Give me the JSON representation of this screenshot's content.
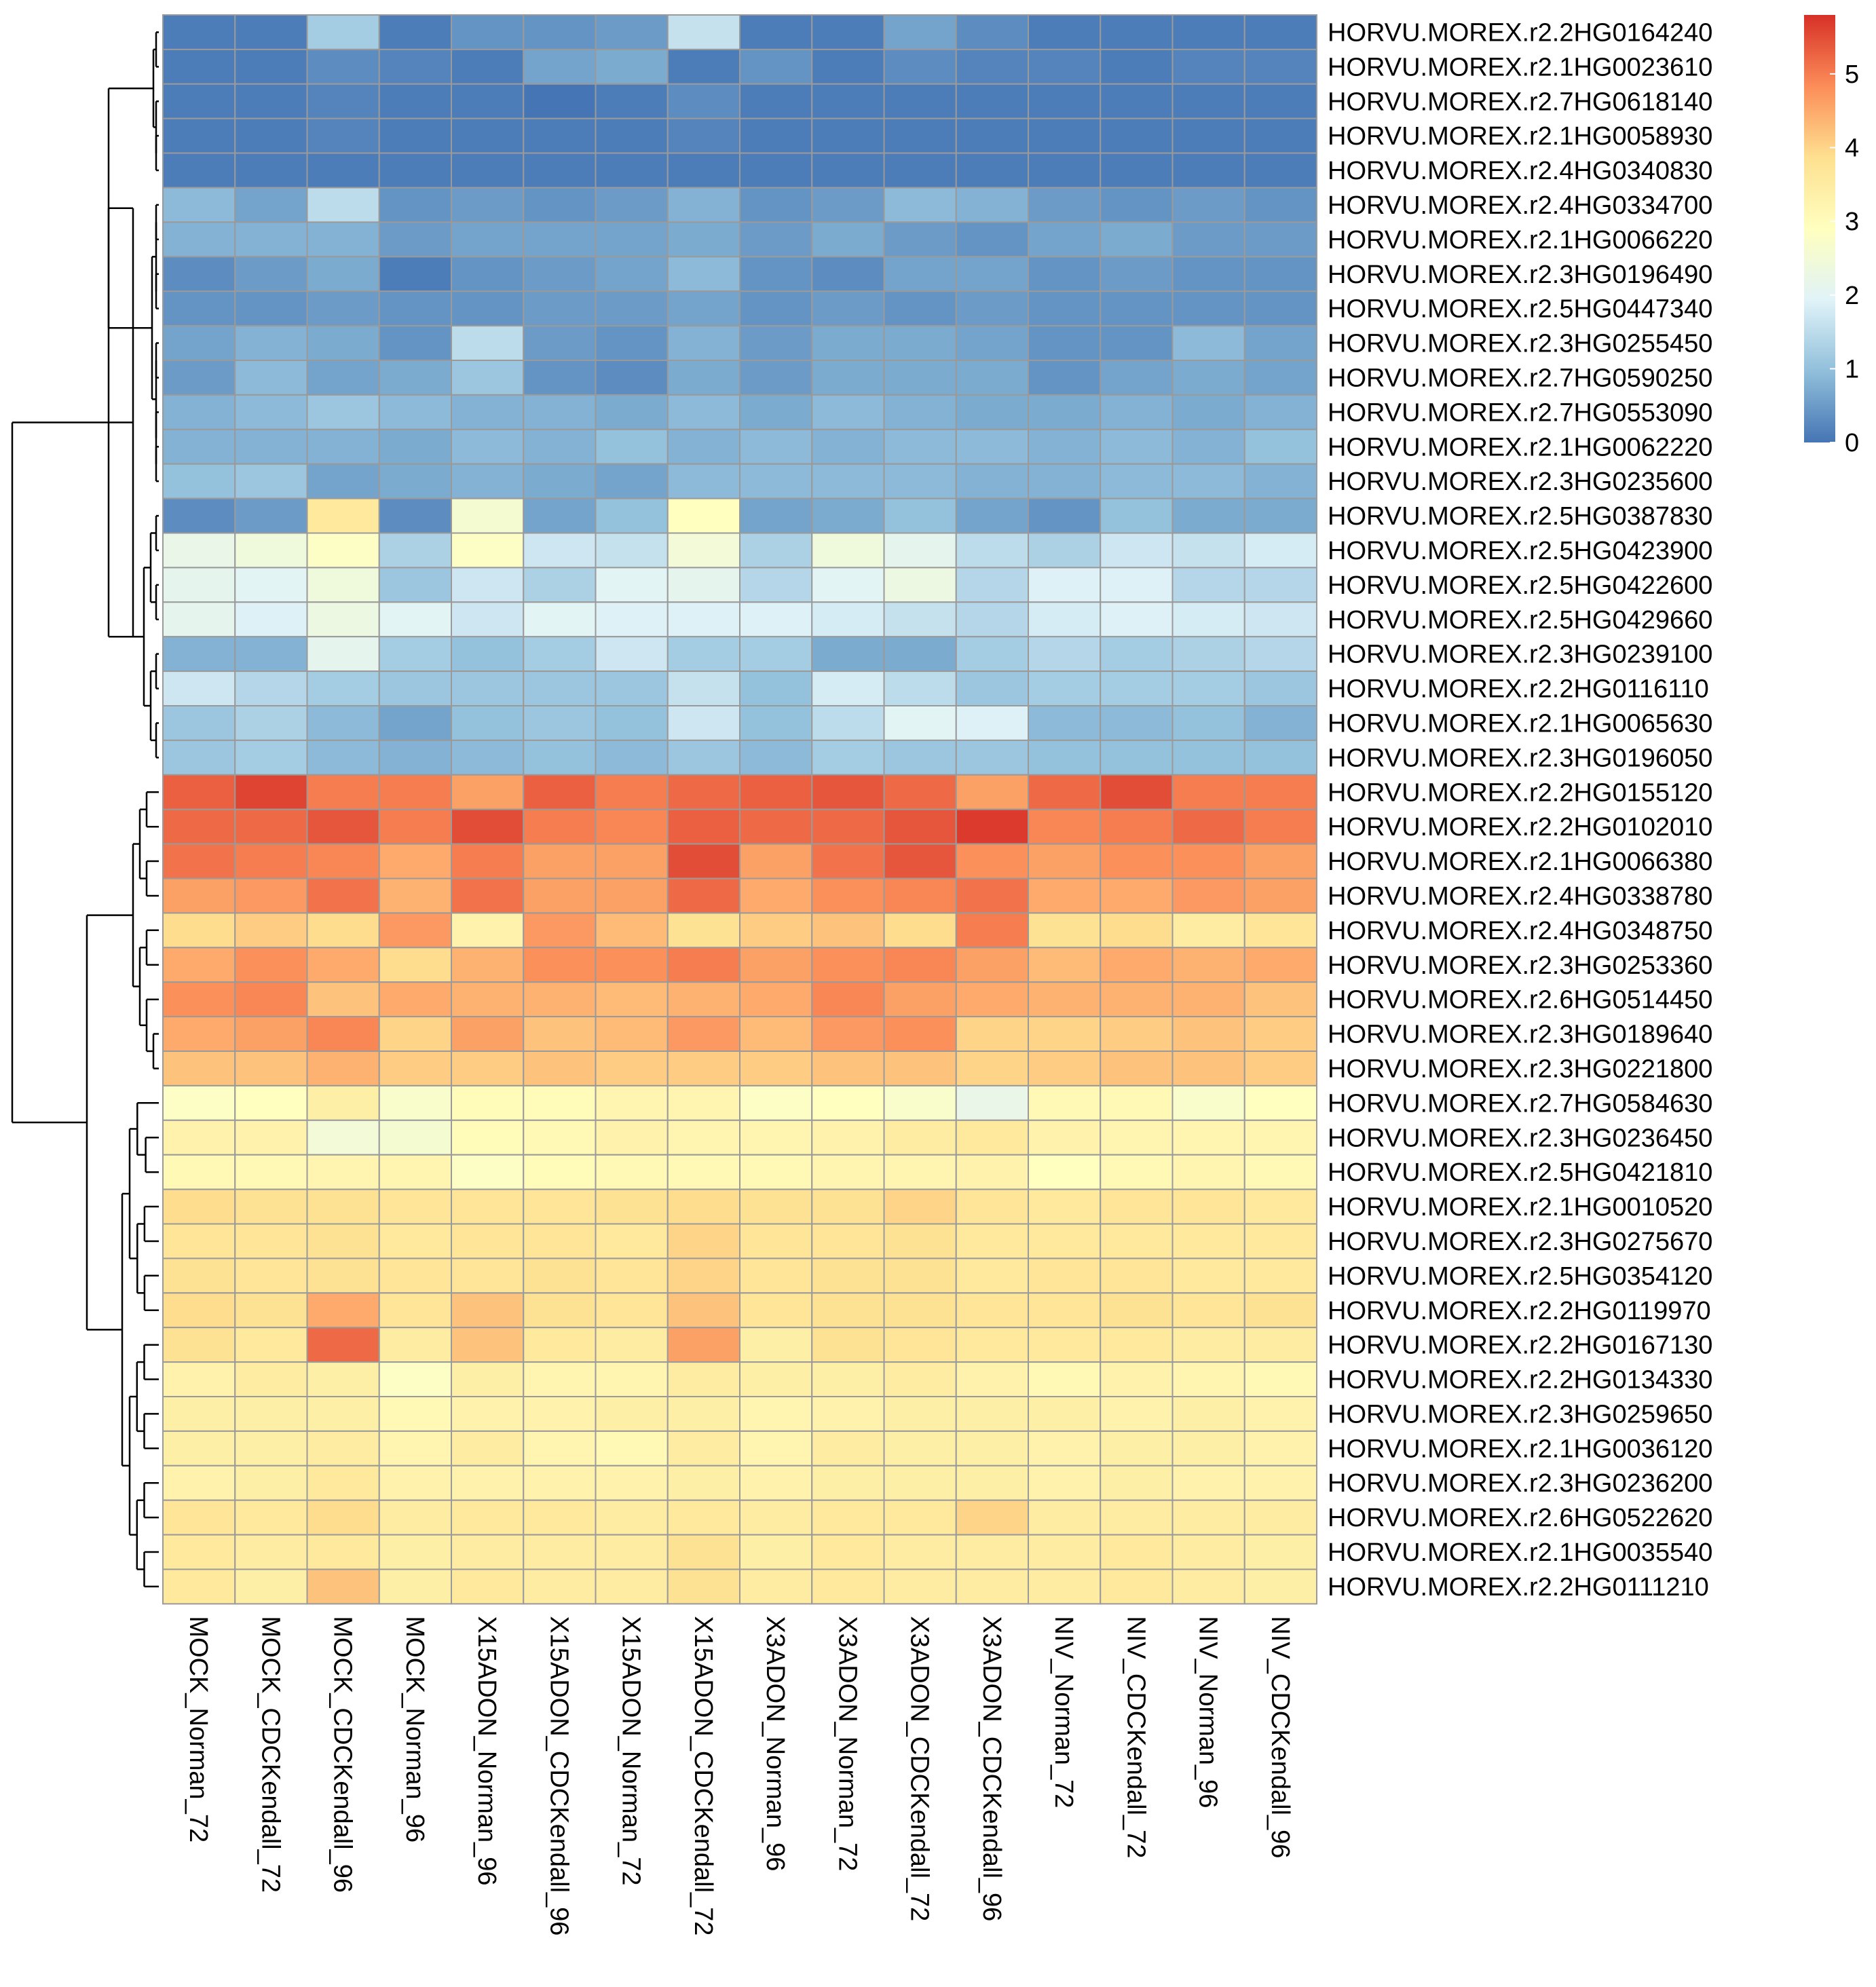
{
  "chart_data": {
    "type": "heatmap",
    "title": "",
    "xlabel": "",
    "ylabel": "",
    "columns": [
      "MOCK_Norman_72",
      "MOCK_CDCKendall_72",
      "MOCK_CDCKendall_96",
      "MOCK_Norman_96",
      "X15ADON_Norman_96",
      "X15ADON_CDCKendall_96",
      "X15ADON_Norman_72",
      "X15ADON_CDCKendall_72",
      "X3ADON_Norman_96",
      "X3ADON_Norman_72",
      "X3ADON_CDCKendall_72",
      "X3ADON_CDCKendall_96",
      "NIV_Norman_72",
      "NIV_CDCKendall_72",
      "NIV_Norman_96",
      "NIV_CDCKendall_96"
    ],
    "rows": [
      "HORVU.MOREX.r2.2HG0164240",
      "HORVU.MOREX.r2.1HG0023610",
      "HORVU.MOREX.r2.7HG0618140",
      "HORVU.MOREX.r2.1HG0058930",
      "HORVU.MOREX.r2.4HG0340830",
      "HORVU.MOREX.r2.4HG0334700",
      "HORVU.MOREX.r2.1HG0066220",
      "HORVU.MOREX.r2.3HG0196490",
      "HORVU.MOREX.r2.5HG0447340",
      "HORVU.MOREX.r2.3HG0255450",
      "HORVU.MOREX.r2.7HG0590250",
      "HORVU.MOREX.r2.7HG0553090",
      "HORVU.MOREX.r2.1HG0062220",
      "HORVU.MOREX.r2.3HG0235600",
      "HORVU.MOREX.r2.5HG0387830",
      "HORVU.MOREX.r2.5HG0423900",
      "HORVU.MOREX.r2.5HG0422600",
      "HORVU.MOREX.r2.5HG0429660",
      "HORVU.MOREX.r2.3HG0239100",
      "HORVU.MOREX.r2.2HG0116110",
      "HORVU.MOREX.r2.1HG0065630",
      "HORVU.MOREX.r2.3HG0196050",
      "HORVU.MOREX.r2.2HG0155120",
      "HORVU.MOREX.r2.2HG0102010",
      "HORVU.MOREX.r2.1HG0066380",
      "HORVU.MOREX.r2.4HG0338780",
      "HORVU.MOREX.r2.4HG0348750",
      "HORVU.MOREX.r2.3HG0253360",
      "HORVU.MOREX.r2.6HG0514450",
      "HORVU.MOREX.r2.3HG0189640",
      "HORVU.MOREX.r2.3HG0221800",
      "HORVU.MOREX.r2.7HG0584630",
      "HORVU.MOREX.r2.3HG0236450",
      "HORVU.MOREX.r2.5HG0421810",
      "HORVU.MOREX.r2.1HG0010520",
      "HORVU.MOREX.r2.3HG0275670",
      "HORVU.MOREX.r2.5HG0354120",
      "HORVU.MOREX.r2.2HG0119970",
      "HORVU.MOREX.r2.2HG0167130",
      "HORVU.MOREX.r2.2HG0134330",
      "HORVU.MOREX.r2.3HG0259650",
      "HORVU.MOREX.r2.1HG0036120",
      "HORVU.MOREX.r2.3HG0236200",
      "HORVU.MOREX.r2.6HG0522620",
      "HORVU.MOREX.r2.1HG0035540",
      "HORVU.MOREX.r2.2HG0111210"
    ],
    "values": [
      [
        0.1,
        0.1,
        1.2,
        0.1,
        0.4,
        0.4,
        0.5,
        1.6,
        0.1,
        0.1,
        0.6,
        0.3,
        0.1,
        0.1,
        0.1,
        0.1
      ],
      [
        0.1,
        0.1,
        0.3,
        0.2,
        0.1,
        0.6,
        0.7,
        0.1,
        0.4,
        0.1,
        0.3,
        0.2,
        0.2,
        0.1,
        0.2,
        0.2
      ],
      [
        0.1,
        0.1,
        0.2,
        0.1,
        0.1,
        0.0,
        0.1,
        0.3,
        0.1,
        0.1,
        0.1,
        0.1,
        0.1,
        0.1,
        0.1,
        0.1
      ],
      [
        0.1,
        0.1,
        0.2,
        0.1,
        0.1,
        0.1,
        0.1,
        0.2,
        0.1,
        0.1,
        0.1,
        0.1,
        0.1,
        0.1,
        0.1,
        0.1
      ],
      [
        0.1,
        0.1,
        0.1,
        0.1,
        0.1,
        0.1,
        0.1,
        0.1,
        0.1,
        0.1,
        0.1,
        0.1,
        0.1,
        0.1,
        0.1,
        0.1
      ],
      [
        0.9,
        0.6,
        1.5,
        0.4,
        0.5,
        0.4,
        0.5,
        0.8,
        0.4,
        0.5,
        0.9,
        0.8,
        0.5,
        0.4,
        0.5,
        0.4
      ],
      [
        0.8,
        0.8,
        0.8,
        0.5,
        0.6,
        0.6,
        0.6,
        0.7,
        0.5,
        0.7,
        0.5,
        0.4,
        0.6,
        0.7,
        0.5,
        0.5
      ],
      [
        0.3,
        0.5,
        0.7,
        0.1,
        0.4,
        0.5,
        0.6,
        0.9,
        0.4,
        0.3,
        0.6,
        0.6,
        0.4,
        0.5,
        0.4,
        0.4
      ],
      [
        0.4,
        0.4,
        0.5,
        0.4,
        0.4,
        0.5,
        0.5,
        0.6,
        0.4,
        0.5,
        0.4,
        0.5,
        0.4,
        0.4,
        0.4,
        0.4
      ],
      [
        0.6,
        0.8,
        0.7,
        0.4,
        1.5,
        0.5,
        0.4,
        0.8,
        0.5,
        0.7,
        0.7,
        0.6,
        0.4,
        0.4,
        0.9,
        0.6
      ],
      [
        0.5,
        0.9,
        0.6,
        0.7,
        1.1,
        0.4,
        0.3,
        0.7,
        0.5,
        0.7,
        0.7,
        0.7,
        0.4,
        0.6,
        0.7,
        0.6
      ],
      [
        0.8,
        0.9,
        1.1,
        0.9,
        0.8,
        0.8,
        0.7,
        0.9,
        0.7,
        0.9,
        0.8,
        0.7,
        0.7,
        0.8,
        0.7,
        0.8
      ],
      [
        0.8,
        0.8,
        0.8,
        0.7,
        0.9,
        0.8,
        1.0,
        0.8,
        0.9,
        0.8,
        0.9,
        0.9,
        0.8,
        0.9,
        0.8,
        1.0
      ],
      [
        1.0,
        1.1,
        0.6,
        0.7,
        0.8,
        0.7,
        0.6,
        0.9,
        0.9,
        0.9,
        0.9,
        0.8,
        0.8,
        0.9,
        0.9,
        0.8
      ],
      [
        0.3,
        0.5,
        3.6,
        0.3,
        2.6,
        0.6,
        1.0,
        2.9,
        0.6,
        0.7,
        1.0,
        0.6,
        0.4,
        1.0,
        0.7,
        0.7
      ],
      [
        2.2,
        2.4,
        2.8,
        1.3,
        2.8,
        1.7,
        1.6,
        2.5,
        1.3,
        2.4,
        2.1,
        1.5,
        1.3,
        1.7,
        1.6,
        1.8
      ],
      [
        2.1,
        2.0,
        2.4,
        1.1,
        1.7,
        1.3,
        2.0,
        2.1,
        1.4,
        2.0,
        2.3,
        1.4,
        1.9,
        1.9,
        1.4,
        1.4
      ],
      [
        2.1,
        1.9,
        2.3,
        2.0,
        1.7,
        2.0,
        1.9,
        1.9,
        1.9,
        1.8,
        1.6,
        1.4,
        1.8,
        1.9,
        1.8,
        1.7
      ],
      [
        0.8,
        0.8,
        2.1,
        1.2,
        1.0,
        1.2,
        1.7,
        1.2,
        1.2,
        0.7,
        0.7,
        1.2,
        1.4,
        1.2,
        1.3,
        1.4
      ],
      [
        1.7,
        1.4,
        1.2,
        1.1,
        1.1,
        1.1,
        1.1,
        1.6,
        1.0,
        1.8,
        1.5,
        1.1,
        1.2,
        1.2,
        1.2,
        1.1
      ],
      [
        1.1,
        1.3,
        0.9,
        0.6,
        1.0,
        1.1,
        1.0,
        1.7,
        1.0,
        1.5,
        2.0,
        1.9,
        0.9,
        0.9,
        1.0,
        0.8
      ],
      [
        1.1,
        1.2,
        0.9,
        0.8,
        0.9,
        1.0,
        0.9,
        1.1,
        0.9,
        1.2,
        1.1,
        1.1,
        1.0,
        1.0,
        1.0,
        1.0
      ],
      [
        5.3,
        5.6,
        5.0,
        5.0,
        4.6,
        5.3,
        5.0,
        5.2,
        5.3,
        5.4,
        5.2,
        4.6,
        5.2,
        5.5,
        5.0,
        5.0
      ],
      [
        5.2,
        5.2,
        5.4,
        5.0,
        5.5,
        5.0,
        4.9,
        5.3,
        5.2,
        5.2,
        5.4,
        5.7,
        4.9,
        5.0,
        5.2,
        5.0
      ],
      [
        5.1,
        5.0,
        4.9,
        4.5,
        5.0,
        4.6,
        4.6,
        5.5,
        4.6,
        5.1,
        5.4,
        4.8,
        4.6,
        4.8,
        4.8,
        4.6
      ],
      [
        4.6,
        4.7,
        5.1,
        4.4,
        5.1,
        4.6,
        4.6,
        5.2,
        4.5,
        4.8,
        4.9,
        5.1,
        4.5,
        4.5,
        4.7,
        4.6
      ],
      [
        3.9,
        4.1,
        3.9,
        4.7,
        3.3,
        4.7,
        4.3,
        3.8,
        4.1,
        4.2,
        3.9,
        5.0,
        3.8,
        3.9,
        3.5,
        3.7
      ],
      [
        4.5,
        4.8,
        4.5,
        3.9,
        4.4,
        4.8,
        4.8,
        5.0,
        4.6,
        4.8,
        4.9,
        4.6,
        4.3,
        4.5,
        4.4,
        4.5
      ],
      [
        4.8,
        4.9,
        4.2,
        4.5,
        4.4,
        4.4,
        4.3,
        4.4,
        4.5,
        4.9,
        4.6,
        4.5,
        4.4,
        4.4,
        4.4,
        4.2
      ],
      [
        4.5,
        4.6,
        4.9,
        4.0,
        4.6,
        4.2,
        4.3,
        4.7,
        4.3,
        4.7,
        4.8,
        4.0,
        4.0,
        4.1,
        4.2,
        4.1
      ],
      [
        4.2,
        4.2,
        4.4,
        4.1,
        4.1,
        4.2,
        4.1,
        4.1,
        4.1,
        4.2,
        4.2,
        4.0,
        4.1,
        4.2,
        4.2,
        4.1
      ],
      [
        2.8,
        2.9,
        3.4,
        2.7,
        3.0,
        3.0,
        3.2,
        3.2,
        2.8,
        2.9,
        2.7,
        2.2,
        3.1,
        3.1,
        2.7,
        2.9
      ],
      [
        3.3,
        3.3,
        2.5,
        2.6,
        3.0,
        3.1,
        3.3,
        3.2,
        3.2,
        3.3,
        3.5,
        3.6,
        3.3,
        3.2,
        3.2,
        3.2
      ],
      [
        3.1,
        3.1,
        3.2,
        3.2,
        2.8,
        3.0,
        3.1,
        3.1,
        3.1,
        3.2,
        3.2,
        3.3,
        2.9,
        3.1,
        3.2,
        3.1
      ],
      [
        3.9,
        3.8,
        3.8,
        3.7,
        3.7,
        3.7,
        3.8,
        3.9,
        3.8,
        3.8,
        4.0,
        3.7,
        3.6,
        3.7,
        3.7,
        3.6
      ],
      [
        3.7,
        3.7,
        3.8,
        3.6,
        3.7,
        3.7,
        3.6,
        4.0,
        3.7,
        3.7,
        3.8,
        3.6,
        3.6,
        3.6,
        3.6,
        3.6
      ],
      [
        3.8,
        3.7,
        3.8,
        3.7,
        3.7,
        3.8,
        3.7,
        4.0,
        3.7,
        3.8,
        3.8,
        3.6,
        3.7,
        3.7,
        3.6,
        3.6
      ],
      [
        3.9,
        3.8,
        4.5,
        3.7,
        4.2,
        3.8,
        3.7,
        4.2,
        3.7,
        3.8,
        3.8,
        3.7,
        3.7,
        3.8,
        3.7,
        3.8
      ],
      [
        3.8,
        3.6,
        5.2,
        3.5,
        4.2,
        3.6,
        3.5,
        4.6,
        3.4,
        3.8,
        3.7,
        3.6,
        3.6,
        3.6,
        3.5,
        3.5
      ],
      [
        3.3,
        3.5,
        3.4,
        2.8,
        3.4,
        3.2,
        3.2,
        3.5,
        3.4,
        3.4,
        3.5,
        3.3,
        3.1,
        3.3,
        3.2,
        3.1
      ],
      [
        3.4,
        3.4,
        3.4,
        3.1,
        3.3,
        3.3,
        3.4,
        3.4,
        3.2,
        3.3,
        3.4,
        3.4,
        3.4,
        3.3,
        3.4,
        3.3
      ],
      [
        3.4,
        3.4,
        3.5,
        3.2,
        3.5,
        3.2,
        3.1,
        3.5,
        3.2,
        3.5,
        3.4,
        3.4,
        3.3,
        3.4,
        3.4,
        3.3
      ],
      [
        3.3,
        3.4,
        3.6,
        3.3,
        3.3,
        3.3,
        3.3,
        3.4,
        3.3,
        3.4,
        3.4,
        3.4,
        3.3,
        3.4,
        3.3,
        3.3
      ],
      [
        3.7,
        3.6,
        3.9,
        3.5,
        3.6,
        3.6,
        3.5,
        3.6,
        3.5,
        3.6,
        3.6,
        4.0,
        3.5,
        3.5,
        3.5,
        3.5
      ],
      [
        3.6,
        3.5,
        3.6,
        3.4,
        3.5,
        3.5,
        3.5,
        3.8,
        3.4,
        3.6,
        3.5,
        3.5,
        3.5,
        3.6,
        3.5,
        3.4
      ],
      [
        3.6,
        3.4,
        4.2,
        3.4,
        3.6,
        3.5,
        3.5,
        3.8,
        3.5,
        3.6,
        3.5,
        3.5,
        3.5,
        3.6,
        3.5,
        3.4
      ]
    ],
    "color_scale": {
      "min": 0,
      "max": 5.8,
      "stops": [
        "#4575B4",
        "#91BFDB",
        "#E0F3F8",
        "#FFFFBF",
        "#FEE090",
        "#FC8D59",
        "#D73027"
      ],
      "ticks": [
        0,
        1,
        2,
        3,
        4,
        5
      ]
    },
    "cell_border_color": "#9A9A9A",
    "legend_position": "top-right",
    "row_clusters": [
      {
        "start": 0,
        "end": 4
      },
      {
        "start": 5,
        "end": 13
      },
      {
        "start": 14,
        "end": 21
      },
      {
        "start": 22,
        "end": 30
      },
      {
        "start": 31,
        "end": 45
      }
    ]
  }
}
